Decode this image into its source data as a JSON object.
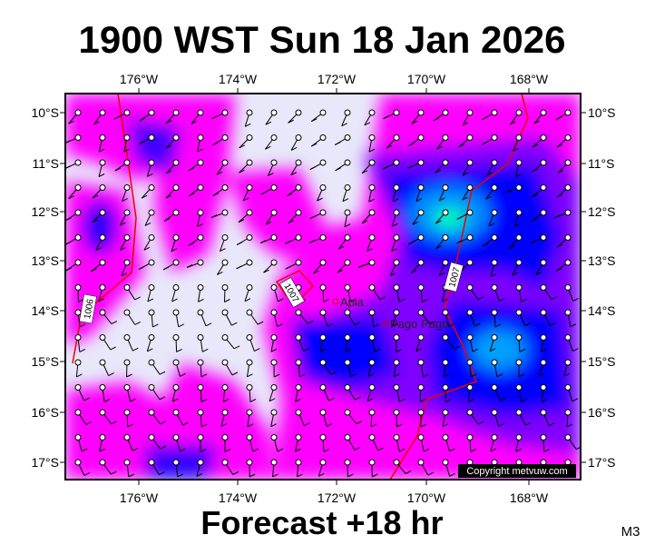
{
  "title": "1900 WST Sun 18 Jan 2026",
  "footer": "Forecast +18 hr",
  "model": "M3",
  "copyright": "Copyright metvuw.com",
  "lon_labels": [
    "176°W",
    "174°W",
    "172°W",
    "170°W",
    "168°W"
  ],
  "lat_labels": [
    "10°S",
    "11°S",
    "12°S",
    "13°S",
    "14°S",
    "15°S",
    "16°S",
    "17°S"
  ],
  "places": [
    "Apia",
    "Pago Pago"
  ],
  "isobar_labels": [
    "1006",
    "1007",
    "1007"
  ]
}
